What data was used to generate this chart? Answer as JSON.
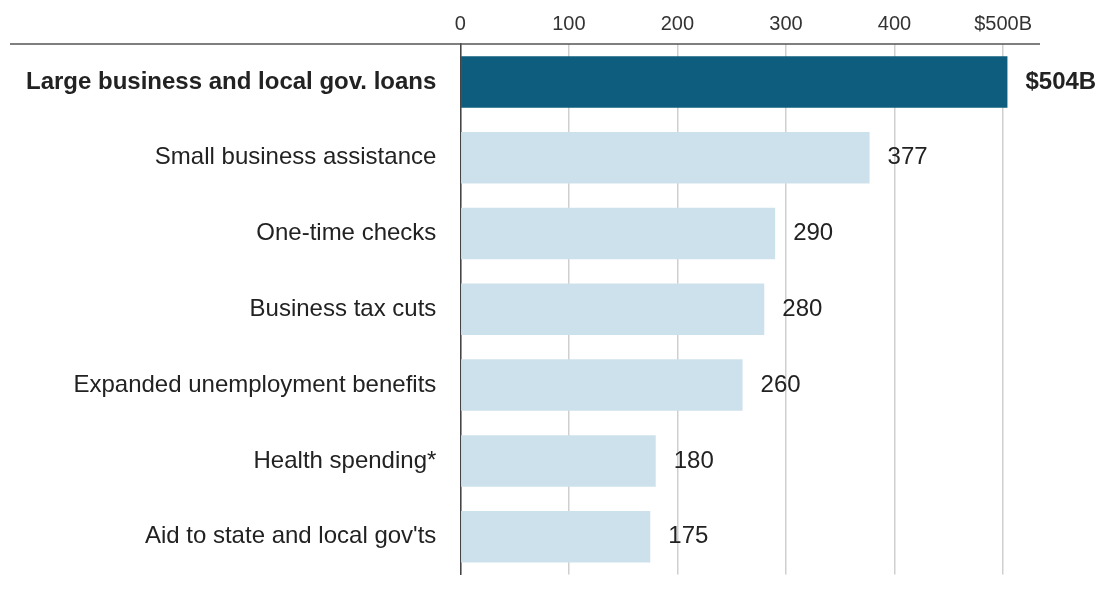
{
  "chart_data": {
    "type": "bar",
    "orientation": "horizontal",
    "categories": [
      "Large business and local gov. loans",
      "Small business assistance",
      "One-time checks",
      "Business tax cuts",
      "Expanded unemployment benefits",
      "Health spending*",
      "Aid to state and local gov'ts"
    ],
    "values": [
      504,
      377,
      290,
      280,
      260,
      180,
      175
    ],
    "colors": [
      "#0e5c7e",
      "#cde1ec",
      "#cde1ec",
      "#cde1ec",
      "#cde1ec",
      "#cde1ec",
      "#cde1ec"
    ],
    "value_labels": [
      "$504B",
      "377",
      "290",
      "280",
      "260",
      "180",
      "175"
    ],
    "xlim": [
      0,
      534
    ],
    "xticks": [
      0,
      100,
      200,
      300,
      400,
      {
        "value": 500,
        "label": "$500B"
      }
    ],
    "grid": "x"
  }
}
